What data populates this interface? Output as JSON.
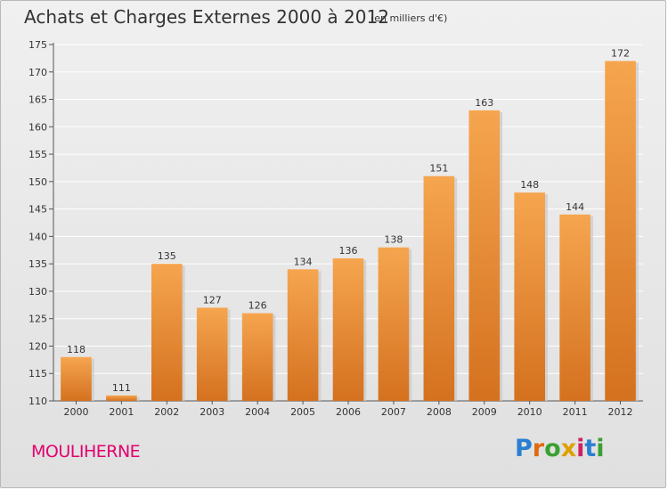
{
  "header": {
    "title": "Achats et Charges Externes 2000 à 2012",
    "unit": "(en milliers d'€)"
  },
  "footer": {
    "place": "MOULIHERNE",
    "brand_letters": [
      "P",
      "r",
      "o",
      "x",
      "i",
      "t",
      "i"
    ]
  },
  "colors": {
    "bar_top": "#f6a54f",
    "bar_bottom": "#d4711f",
    "bar_shadow": "#c9c9c9",
    "grid": "#ffffff",
    "place_text": "#e1006f"
  },
  "chart_data": {
    "type": "bar",
    "title": "Achats et Charges Externes 2000 à 2012",
    "subtitle": "(en milliers d'€)",
    "categories": [
      "2000",
      "2001",
      "2002",
      "2003",
      "2004",
      "2005",
      "2006",
      "2007",
      "2008",
      "2009",
      "2010",
      "2011",
      "2012"
    ],
    "values": [
      118,
      111,
      135,
      127,
      126,
      134,
      136,
      138,
      151,
      163,
      148,
      144,
      172
    ],
    "ylim": [
      110,
      175
    ],
    "yticks": [
      110,
      115,
      120,
      125,
      130,
      135,
      140,
      145,
      150,
      155,
      160,
      165,
      170,
      175
    ],
    "grid": true,
    "xlabel": "",
    "ylabel": ""
  }
}
